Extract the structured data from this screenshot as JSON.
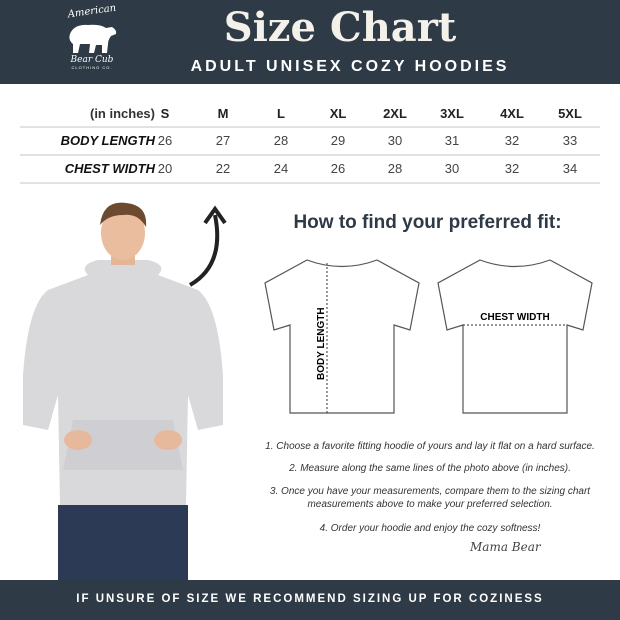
{
  "logo": {
    "line1": "American",
    "line2": "Bear Cub",
    "line3": "CLOTHING CO."
  },
  "header": {
    "title": "Size Chart",
    "subtitle": "ADULT UNISEX COZY HOODIES"
  },
  "table": {
    "unit_label": "(in inches)",
    "sizes": [
      "S",
      "M",
      "L",
      "XL",
      "2XL",
      "3XL",
      "4XL",
      "5XL"
    ],
    "rows": [
      {
        "label": "BODY LENGTH",
        "values": [
          "26",
          "27",
          "28",
          "29",
          "30",
          "31",
          "32",
          "33"
        ]
      },
      {
        "label": "CHEST WIDTH",
        "values": [
          "20",
          "22",
          "24",
          "26",
          "28",
          "30",
          "32",
          "34"
        ]
      }
    ]
  },
  "guide": {
    "heading": "How to find your preferred fit:",
    "body_length_label": "BODY LENGTH",
    "chest_width_label": "CHEST WIDTH",
    "steps": [
      "1. Choose a favorite fitting hoodie of yours and lay it flat on a hard surface.",
      "2. Measure along the same lines of the photo above (in inches).",
      "3. Once you have your measurements, compare them to the sizing chart measurements above to make your preferred selection.",
      "4. Order your hoodie and enjoy the cozy softness!"
    ],
    "signature": "Mama Bear"
  },
  "footer": {
    "text": "IF UNSURE OF SIZE WE RECOMMEND SIZING UP FOR COZINESS"
  },
  "colors": {
    "header_bg": "#2e3b46",
    "hoodie": "#d9d9dc"
  }
}
